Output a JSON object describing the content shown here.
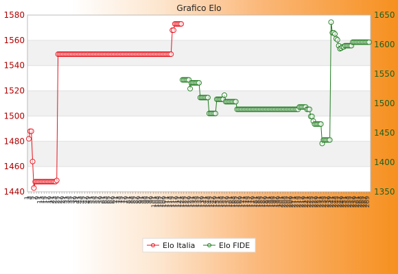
{
  "chart_data": {
    "type": "line",
    "title": "Grafico Elo",
    "y_left": {
      "range": [
        1440,
        1580
      ],
      "ticks": [
        1440,
        1460,
        1480,
        1500,
        1520,
        1540,
        1560,
        1580
      ]
    },
    "y_right": {
      "range": [
        1350,
        1650
      ],
      "ticks": [
        1350,
        1400,
        1450,
        1500,
        1550,
        1600,
        1650
      ]
    },
    "grid": true,
    "legend_position": "bottom-center",
    "colors": {
      "italia": "#e8101a",
      "fide": "#1c7a1c"
    },
    "series": [
      {
        "name": "Elo Italia",
        "axis": "left",
        "x_start": 0,
        "values": [
          1482,
          1488,
          1488,
          1464,
          1443,
          1448,
          1448,
          1448,
          1448,
          1448,
          1448,
          1448,
          1448,
          1448,
          1448,
          1448,
          1448,
          1448,
          1448,
          1448,
          1448,
          1448,
          1449,
          1549,
          1549,
          1549,
          1549,
          1549,
          1549,
          1549,
          1549,
          1549,
          1549,
          1549,
          1549,
          1549,
          1549,
          1549,
          1549,
          1549,
          1549,
          1549,
          1549,
          1549,
          1549,
          1549,
          1549,
          1549,
          1549,
          1549,
          1549,
          1549,
          1549,
          1549,
          1549,
          1549,
          1549,
          1549,
          1549,
          1549,
          1549,
          1549,
          1549,
          1549,
          1549,
          1549,
          1549,
          1549,
          1549,
          1549,
          1549,
          1549,
          1549,
          1549,
          1549,
          1549,
          1549,
          1549,
          1549,
          1549,
          1549,
          1549,
          1549,
          1549,
          1549,
          1549,
          1549,
          1549,
          1549,
          1549,
          1549,
          1549,
          1549,
          1549,
          1549,
          1549,
          1549,
          1549,
          1549,
          1549,
          1549,
          1549,
          1549,
          1549,
          1549,
          1549,
          1549,
          1549,
          1549,
          1549,
          1549,
          1549,
          1549,
          1568,
          1568,
          1573,
          1573,
          1573,
          1573,
          1573,
          1573
        ]
      },
      {
        "name": "Elo FIDE",
        "axis": "right",
        "x_start": 121,
        "values": [
          1540,
          1540,
          1540,
          1540,
          1540,
          1540,
          1525,
          1535,
          1535,
          1535,
          1535,
          1535,
          1535,
          1535,
          1510,
          1510,
          1510,
          1510,
          1510,
          1510,
          1510,
          1483,
          1483,
          1483,
          1483,
          1483,
          1483,
          1507,
          1507,
          1507,
          1507,
          1507,
          1507,
          1514,
          1503,
          1503,
          1503,
          1503,
          1503,
          1503,
          1503,
          1503,
          1503,
          1490,
          1490,
          1490,
          1490,
          1490,
          1490,
          1490,
          1490,
          1490,
          1490,
          1490,
          1490,
          1490,
          1490,
          1490,
          1490,
          1490,
          1490,
          1490,
          1490,
          1490,
          1490,
          1490,
          1490,
          1490,
          1490,
          1490,
          1490,
          1490,
          1490,
          1490,
          1490,
          1490,
          1490,
          1490,
          1490,
          1490,
          1490,
          1490,
          1490,
          1490,
          1490,
          1490,
          1490,
          1490,
          1490,
          1490,
          1490,
          1490,
          1494,
          1494,
          1494,
          1494,
          1494,
          1494,
          1490,
          1490,
          1490,
          1478,
          1478,
          1470,
          1465,
          1465,
          1465,
          1465,
          1465,
          1465,
          1432,
          1438,
          1438,
          1438,
          1438,
          1438,
          1438,
          1638,
          1620,
          1620,
          1618,
          1610,
          1608,
          1598,
          1593,
          1594,
          1596,
          1596,
          1598,
          1598,
          1598,
          1598,
          1598,
          1598,
          1604,
          1604,
          1604,
          1604,
          1604,
          1604,
          1604,
          1604,
          1604,
          1604,
          1604,
          1604,
          1604,
          1604
        ]
      }
    ]
  }
}
